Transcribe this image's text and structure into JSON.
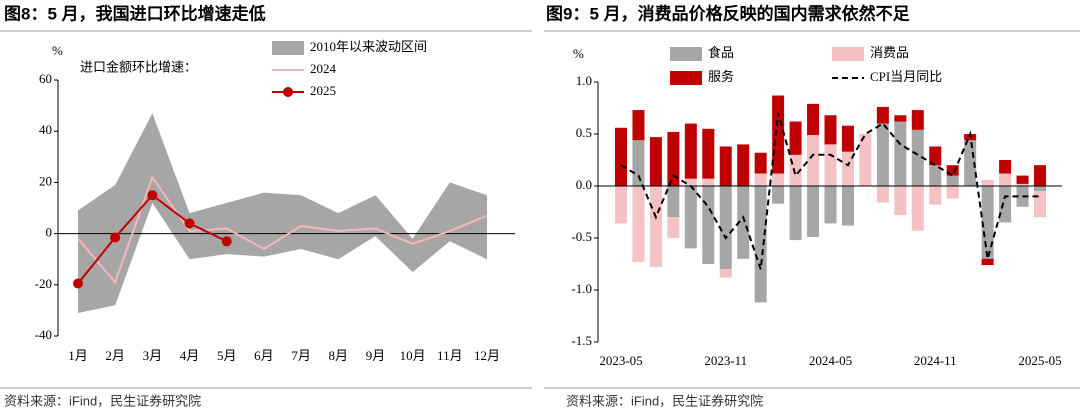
{
  "chart_data": [
    {
      "type": "line",
      "title": "图8：5 月，我国进口环比增速走低",
      "y_label": "%",
      "annotation": "进口金额环比增速：",
      "source": "资料来源：iFind，民生证券研究院",
      "categories": [
        "1月",
        "2月",
        "3月",
        "4月",
        "5月",
        "6月",
        "7月",
        "8月",
        "9月",
        "10月",
        "11月",
        "12月"
      ],
      "ylim": [
        -40,
        60
      ],
      "yticks": [
        -40,
        -20,
        0,
        20,
        40,
        60
      ],
      "series": [
        {
          "name": "2010年以来波动区间",
          "type": "band",
          "color": "#a6a6a6",
          "upper": [
            9,
            19,
            47,
            8,
            12,
            16,
            15,
            8,
            15,
            -2,
            20,
            15
          ],
          "lower": [
            -31,
            -28,
            12,
            -10,
            -8,
            -9,
            -6,
            -10,
            -1,
            -15,
            -3,
            -10
          ]
        },
        {
          "name": "2024",
          "color": "#f4b6b8",
          "values": [
            -2,
            -19,
            22,
            1,
            2,
            -6,
            3,
            1,
            2,
            -4,
            1,
            7
          ]
        },
        {
          "name": "2025",
          "color": "#c00000",
          "markers": true,
          "values": [
            -19.5,
            -1.5,
            15,
            4,
            -3,
            null,
            null,
            null,
            null,
            null,
            null,
            null
          ]
        }
      ]
    },
    {
      "type": "bar",
      "stacked": true,
      "title": "图9：5 月，消费品价格反映的国内需求依然不足",
      "y_label": "%",
      "source": "资料来源：iFind，民生证券研究院",
      "categories": [
        "2023-05",
        null,
        null,
        null,
        null,
        null,
        "2023-11",
        null,
        null,
        null,
        null,
        null,
        "2024-05",
        null,
        null,
        null,
        null,
        null,
        "2024-11",
        null,
        null,
        null,
        null,
        null,
        "2025-05"
      ],
      "ylim": [
        -1.5,
        1
      ],
      "yticks": [
        -1.5,
        {
          "value": -1,
          "label": "-1.0"
        },
        -0.5,
        {
          "value": 0,
          "label": "0.0"
        },
        0.5,
        {
          "value": 1,
          "label": "1.0"
        }
      ],
      "series": [
        {
          "name": "食品",
          "color": "#a6a6a6",
          "values": [
            0,
            0.44,
            0,
            -0.3,
            -0.6,
            -0.75,
            -0.8,
            -0.7,
            -1.12,
            -0.17,
            -0.52,
            -0.49,
            -0.36,
            -0.38,
            0,
            0.6,
            0.62,
            0.54,
            0.2,
            0.1,
            0.44,
            -0.7,
            -0.35,
            -0.2,
            -0.05
          ]
        },
        {
          "name": "消费品",
          "color": "#f4c2c2",
          "values": [
            -0.36,
            -0.73,
            -0.78,
            -0.2,
            0.07,
            0.07,
            -0.08,
            0,
            0.12,
            0.12,
            0.3,
            0.49,
            0.4,
            0.33,
            0.5,
            -0.16,
            -0.28,
            -0.43,
            -0.18,
            -0.12,
            0,
            0.06,
            0.12,
            0.02,
            -0.25
          ]
        },
        {
          "name": "服务",
          "color": "#c00000",
          "values": [
            0.56,
            0.29,
            0.47,
            0.52,
            0.53,
            0.48,
            0.38,
            0.4,
            0.2,
            0.75,
            0.32,
            0.3,
            0.28,
            0.25,
            0,
            0.16,
            0.06,
            0.19,
            0.18,
            0.1,
            0.06,
            -0.06,
            0.13,
            0.08,
            0.2
          ]
        },
        {
          "name": "CPI当月同比",
          "type": "line",
          "dashed": true,
          "color": "#000000",
          "values": [
            0.2,
            0.1,
            -0.3,
            0.1,
            0,
            -0.2,
            -0.5,
            -0.3,
            -0.8,
            0.7,
            0.1,
            0.3,
            0.3,
            0.2,
            0.5,
            0.6,
            0.4,
            0.3,
            0.2,
            0.1,
            0.5,
            -0.7,
            -0.1,
            -0.1,
            -0.1
          ]
        }
      ]
    }
  ]
}
